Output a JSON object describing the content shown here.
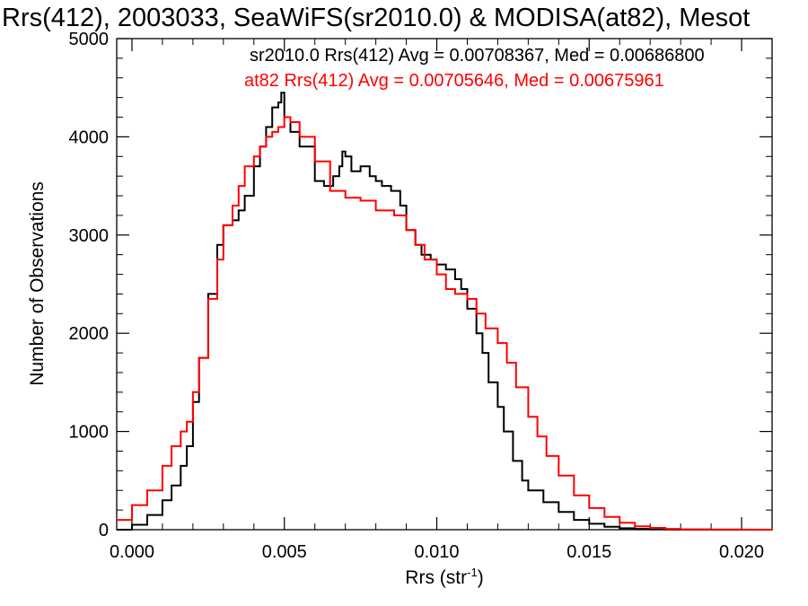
{
  "chart_data": {
    "type": "line",
    "title": "Rrs(412), 2003033, SeaWiFS(sr2010.0) & MODISA(at82), Mesot",
    "xlabel": "Rrs (str",
    "xlabel_sup": "-1",
    "xlabel_close": ")",
    "ylabel": "Number of Observations",
    "xlim": [
      -0.0005,
      0.021
    ],
    "ylim": [
      0,
      5000
    ],
    "x_ticks": [
      0.0,
      0.005,
      0.01,
      0.015,
      0.02
    ],
    "x_tick_labels": [
      "0.000",
      "0.005",
      "0.010",
      "0.015",
      "0.020"
    ],
    "y_ticks": [
      0,
      1000,
      2000,
      3000,
      4000,
      5000
    ],
    "y_tick_labels": [
      "0",
      "1000",
      "2000",
      "3000",
      "4000",
      "5000"
    ],
    "grid": false,
    "legend_position": "top-right",
    "legend": [
      {
        "text": "sr2010.0 Rrs(412) Avg = 0.00708367, Med = 0.00686800",
        "color": "#000000"
      },
      {
        "text": "at82 Rrs(412) Avg = 0.00705646, Med = 0.00675961",
        "color": "#ff0000"
      }
    ],
    "series": [
      {
        "color": "#000000",
        "x": [
          -0.0005,
          0.0,
          0.0005,
          0.001,
          0.0013,
          0.0016,
          0.0018,
          0.002,
          0.0022,
          0.0025,
          0.0028,
          0.003,
          0.0033,
          0.0035,
          0.0037,
          0.004,
          0.0042,
          0.0044,
          0.0046,
          0.0048,
          0.0049,
          0.005,
          0.0052,
          0.0055,
          0.006,
          0.0063,
          0.0066,
          0.0068,
          0.0069,
          0.007,
          0.0072,
          0.0075,
          0.0078,
          0.008,
          0.0082,
          0.0085,
          0.0088,
          0.009,
          0.0093,
          0.0095,
          0.0098,
          0.01,
          0.0103,
          0.0106,
          0.0108,
          0.011,
          0.0113,
          0.0115,
          0.0117,
          0.012,
          0.0122,
          0.0125,
          0.0128,
          0.013,
          0.0135,
          0.014,
          0.0145,
          0.015,
          0.0155,
          0.016,
          0.0165,
          0.017,
          0.0175,
          0.018,
          0.019,
          0.02,
          0.021
        ],
        "y": [
          0,
          50,
          150,
          300,
          450,
          650,
          850,
          1300,
          1750,
          2400,
          2900,
          3100,
          3150,
          3250,
          3400,
          3700,
          3900,
          4100,
          4300,
          4350,
          4450,
          4200,
          4050,
          3900,
          3550,
          3500,
          3600,
          3700,
          3850,
          3800,
          3650,
          3700,
          3600,
          3550,
          3500,
          3450,
          3300,
          3050,
          2900,
          2800,
          2750,
          2700,
          2650,
          2550,
          2450,
          2250,
          2000,
          1800,
          1500,
          1250,
          1000,
          700,
          500,
          400,
          280,
          180,
          100,
          60,
          30,
          15,
          8,
          4,
          2,
          1,
          0,
          0,
          0
        ]
      },
      {
        "color": "#ff0000",
        "x": [
          -0.0005,
          0.0,
          0.0005,
          0.001,
          0.0013,
          0.0016,
          0.0018,
          0.002,
          0.0022,
          0.0025,
          0.0028,
          0.003,
          0.0033,
          0.0035,
          0.0037,
          0.004,
          0.0042,
          0.0044,
          0.0046,
          0.0048,
          0.005,
          0.0052,
          0.0055,
          0.006,
          0.0065,
          0.007,
          0.0075,
          0.008,
          0.0083,
          0.0086,
          0.009,
          0.0093,
          0.0096,
          0.01,
          0.0103,
          0.0106,
          0.011,
          0.0113,
          0.0116,
          0.012,
          0.0123,
          0.0126,
          0.013,
          0.0133,
          0.0136,
          0.014,
          0.0145,
          0.015,
          0.0155,
          0.016,
          0.0165,
          0.017,
          0.0175,
          0.018,
          0.019,
          0.02,
          0.021
        ],
        "y": [
          100,
          250,
          400,
          650,
          850,
          1000,
          1100,
          1400,
          1750,
          2350,
          2750,
          3100,
          3300,
          3500,
          3700,
          3800,
          3900,
          4000,
          4050,
          4100,
          4200,
          4150,
          4000,
          3750,
          3450,
          3380,
          3350,
          3250,
          3250,
          3200,
          3050,
          2900,
          2750,
          2600,
          2450,
          2400,
          2350,
          2200,
          2050,
          1900,
          1700,
          1450,
          1150,
          950,
          750,
          550,
          350,
          220,
          130,
          70,
          35,
          18,
          8,
          4,
          2,
          1,
          0
        ]
      }
    ]
  }
}
